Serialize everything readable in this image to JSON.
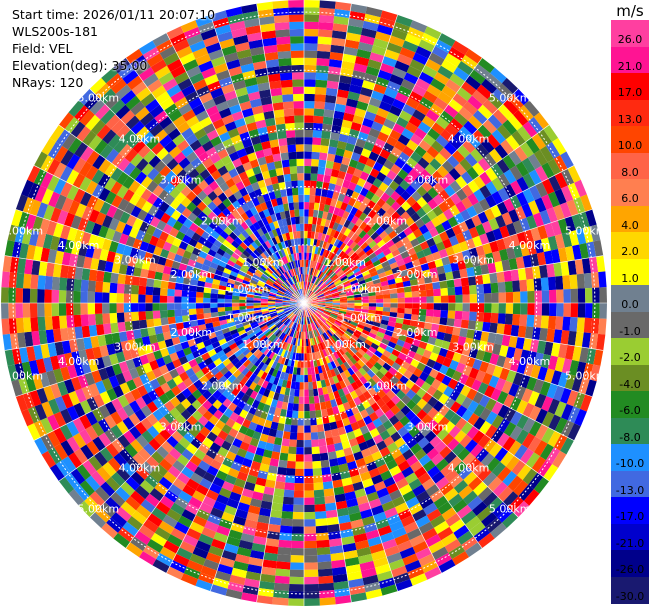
{
  "info": {
    "start_time": "Start time: 2026/01/11 20:07:10",
    "site": "WLS200s-181",
    "field": "Field: VEL",
    "elevation": "Elevation(deg): 35.00",
    "nrays": "NRays: 120"
  },
  "colorbar": {
    "unit": "m/s",
    "levels": [
      "26.0",
      "21.0",
      "17.0",
      "13.0",
      "10.0",
      "8.0",
      "6.0",
      "4.0",
      "2.0",
      "1.0",
      "0.0",
      "-1.0",
      "-2.0",
      "-4.0",
      "-6.0",
      "-8.0",
      "-10.0",
      "-13.0",
      "-17.0",
      "-21.0",
      "-26.0",
      "-30.0"
    ],
    "colors": [
      "#ff3fa0",
      "#ff1493",
      "#ff0000",
      "#ff2a10",
      "#ff4500",
      "#ff6347",
      "#ff7f50",
      "#ffa500",
      "#ffd700",
      "#ffff00",
      "#708090",
      "#696969",
      "#9acd32",
      "#6b8e23",
      "#228b22",
      "#2e8b57",
      "#1e90ff",
      "#4169e1",
      "#0000ff",
      "#0000cd",
      "#00008b",
      "#191970"
    ]
  },
  "chart_data": {
    "type": "heatmap",
    "title": "",
    "field": "VEL",
    "unit": "m/s",
    "nrays": 120,
    "elevation_deg": 35.0,
    "range_rings_km": [
      {
        "label": "1.00km",
        "value": 1.0
      },
      {
        "label": "2.00km",
        "value": 2.0
      },
      {
        "label": "3.00km",
        "value": 3.0
      },
      {
        "label": "4.00km",
        "value": 4.0
      },
      {
        "label": "5.00km",
        "value": 5.0
      }
    ],
    "max_range_km": 5.0,
    "color_levels": [
      -30.0,
      -26.0,
      -21.0,
      -17.0,
      -13.0,
      -10.0,
      -8.0,
      -6.0,
      -4.0,
      -2.0,
      -1.0,
      0.0,
      1.0,
      2.0,
      4.0,
      6.0,
      8.0,
      10.0,
      13.0,
      17.0,
      21.0,
      26.0
    ]
  }
}
